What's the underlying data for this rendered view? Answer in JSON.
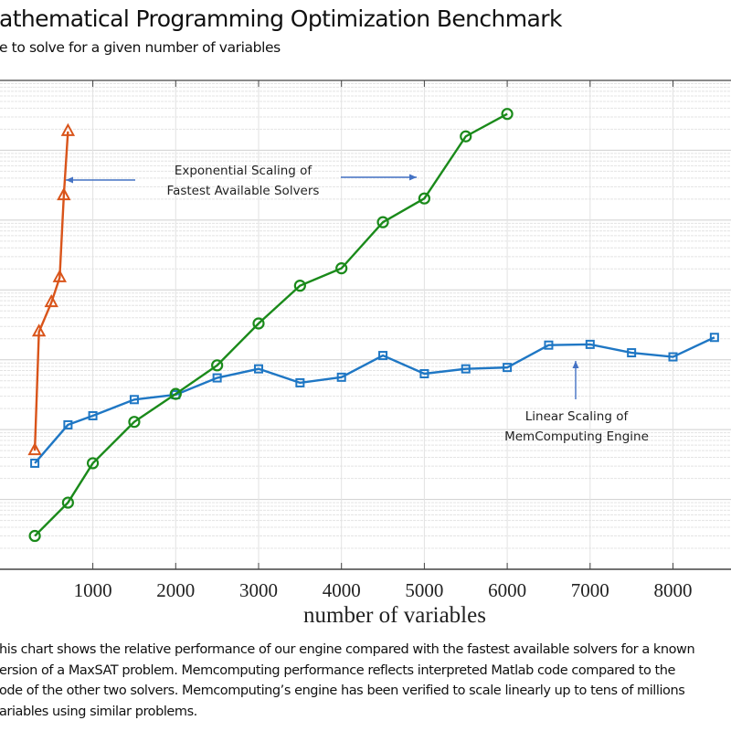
{
  "title": "athematical Programming Optimization Benchmark",
  "subtitle": "e to solve for a given number of variables",
  "caption": [
    "his chart shows the relative performance of our engine compared with the fastest available solvers for a known",
    "ersion of a MaxSAT problem.  Memcomputing performance reflects interpreted Matlab code compared to the",
    "ode of the other two solvers.  Memcomputing’s engine has been verified to scale linearly up to tens of millions",
    "ariables using similar problems."
  ],
  "chart_data": {
    "type": "line",
    "title": "",
    "xlabel": "number of variables",
    "ylabel": "",
    "xlim": [
      -120,
      8700
    ],
    "ylim": [
      1,
      10000000
    ],
    "yscale": "log",
    "grid": true,
    "xticks": [
      1000,
      2000,
      3000,
      4000,
      5000,
      6000,
      7000,
      8000
    ],
    "xtick_labels": [
      "1000",
      "2000",
      "3000",
      "4000",
      "5000",
      "6000",
      "7000",
      "8000"
    ],
    "series": [
      {
        "color": "#d9541a",
        "marker": "triangle",
        "x": [
          300,
          350,
          500,
          600,
          650,
          700
        ],
        "values": [
          50,
          2500,
          6600,
          15000,
          224000,
          1860000
        ]
      },
      {
        "color": "#1f77c4",
        "marker": "square",
        "x": [
          300,
          700,
          1000,
          1500,
          2000,
          2500,
          3000,
          3500,
          4000,
          4500,
          5000,
          5500,
          6000,
          6500,
          7000,
          7500,
          8000,
          8500
        ],
        "values": [
          33,
          117,
          158,
          269,
          316,
          550,
          741,
          468,
          562,
          1150,
          631,
          741,
          776,
          1620,
          1660,
          1260,
          1100,
          2090
        ]
      },
      {
        "color": "#1a8a1a",
        "marker": "circle",
        "x": [
          300,
          700,
          1000,
          1500,
          2000,
          2500,
          3000,
          3500,
          4000,
          4500,
          5000,
          5500,
          6000
        ],
        "values": [
          3,
          9,
          33,
          129,
          324,
          832,
          3310,
          11500,
          20400,
          93300,
          204000,
          1580000,
          3310000
        ]
      }
    ],
    "annotations": [
      {
        "lines": [
          "Exponential Scaling of",
          "Fastest Available Solvers"
        ]
      },
      {
        "lines": [
          "Linear Scaling of",
          "MemComputing Engine"
        ]
      }
    ],
    "arrow_color": "#4472c4"
  }
}
